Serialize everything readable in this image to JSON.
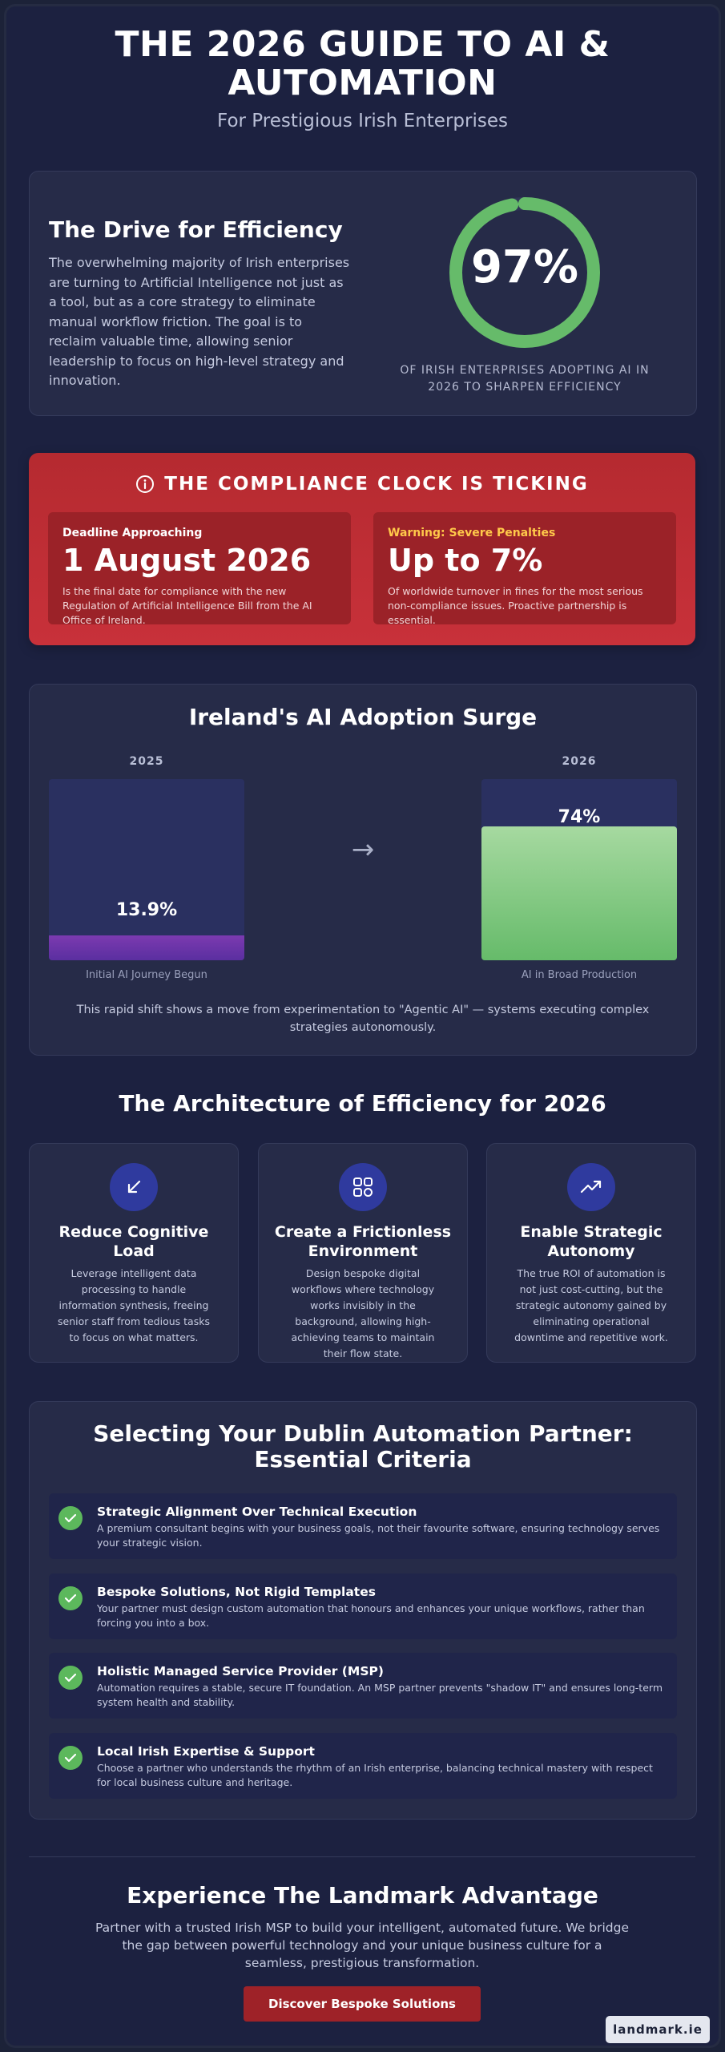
{
  "header": {
    "title_line1": "THE 2026 GUIDE TO AI &",
    "title_line2": "AUTOMATION",
    "subtitle": "For Prestigious Irish Enterprises"
  },
  "efficiency": {
    "title": "The Drive for Efficiency",
    "body": "The overwhelming majority of Irish enterprises are turning to Artificial Intelligence not just as a tool, but as a core strategy to eliminate manual workflow friction. The goal is to reclaim valuable time, allowing senior leadership to focus on high-level strategy and innovation.",
    "stat_value": "97%",
    "stat_fraction": 0.97,
    "stat_caption": "OF IRISH ENTERPRISES ADOPTING AI IN 2026 TO SHARPEN EFFICIENCY",
    "ring_color": "#66bb6a"
  },
  "compliance": {
    "heading": "THE COMPLIANCE CLOCK IS TICKING",
    "icon": "info-icon",
    "left": {
      "label": "Deadline Approaching",
      "value": "1 August 2026",
      "text": "Is the final date for compliance with the new Regulation of Artificial Intelligence Bill from the AI Office of Ireland."
    },
    "right": {
      "label": "Warning: Severe Penalties",
      "value": "Up to 7%",
      "text": "Of worldwide turnover in fines for the most serious non-compliance issues. Proactive partnership is essential."
    },
    "accent": "#c8313a",
    "warning_color": "#ffc94a"
  },
  "adoption": {
    "title": "Ireland's AI Adoption Surge",
    "arrow": "→",
    "note": "This rapid shift shows a move from experimentation to \"Agentic AI\" — systems executing complex strategies autonomously."
  },
  "chart_data": {
    "type": "bar",
    "categories": [
      "2025",
      "2026"
    ],
    "values": [
      13.9,
      74
    ],
    "value_labels": [
      "13.9%",
      "74%"
    ],
    "captions": [
      "Initial AI Journey Begun",
      "AI in Broad Production"
    ],
    "ylim": [
      0,
      100
    ],
    "colors": [
      "#6a34a8",
      "#66bb6a"
    ]
  },
  "architecture": {
    "title": "The Architecture of Efficiency for 2026",
    "pillars": [
      {
        "icon": "arrow-down-left-icon",
        "title": "Reduce Cognitive Load",
        "text": "Leverage intelligent data processing to handle information synthesis, freeing senior staff from tedious tasks to focus on what matters."
      },
      {
        "icon": "grid-icon",
        "title": "Create a Frictionless Environment",
        "text": "Design bespoke digital workflows where technology works invisibly in the background, allowing high-achieving teams to maintain their flow state."
      },
      {
        "icon": "trending-up-icon",
        "title": "Enable Strategic Autonomy",
        "text": "The true ROI of automation is not just cost-cutting, but the strategic autonomy gained by eliminating operational downtime and repetitive work."
      }
    ]
  },
  "criteria": {
    "title": "Selecting Your Dublin Automation Partner: Essential Criteria",
    "items": [
      {
        "title": "Strategic Alignment Over Technical Execution",
        "text": "A premium consultant begins with your business goals, not their favourite software, ensuring technology serves your strategic vision."
      },
      {
        "title": "Bespoke Solutions, Not Rigid Templates",
        "text": "Your partner must design custom automation that honours and enhances your unique workflows, rather than forcing you into a box."
      },
      {
        "title": "Holistic Managed Service Provider (MSP)",
        "text": "Automation requires a stable, secure IT foundation. An MSP partner prevents \"shadow IT\" and ensures long-term system health and stability."
      },
      {
        "title": "Local Irish Expertise & Support",
        "text": "Choose a partner who understands the rhythm of an Irish enterprise, balancing technical mastery with respect for local business culture and heritage."
      }
    ],
    "check_color": "#5cb85c"
  },
  "footer": {
    "title": "Experience The Landmark Advantage",
    "text": "Partner with a trusted Irish MSP to build your intelligent, automated future. We bridge the gap between powerful technology and your unique business culture for a seamless, prestigious transformation.",
    "cta_label": "Discover Bespoke Solutions",
    "cta_color": "#9e2228",
    "brand": "landmark.ie"
  }
}
